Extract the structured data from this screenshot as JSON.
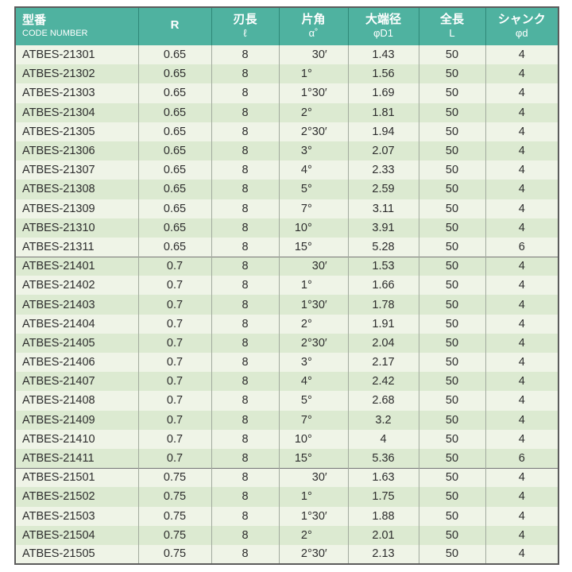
{
  "colors": {
    "header_bg": "#4fb2a0",
    "header_text": "#ffffff",
    "header_divider": "#2f8878",
    "row_light": "#eff4e7",
    "row_dark": "#dcead1",
    "outer_border": "#5c5c5c",
    "column_divider": "#a2aa9e",
    "group_divider": "#777777",
    "body_text": "#2d2d2d"
  },
  "table": {
    "columns": [
      {
        "id": "code",
        "title": "型番",
        "subtitle": "CODE NUMBER",
        "align": "left"
      },
      {
        "id": "r",
        "title": "R",
        "subtitle": ""
      },
      {
        "id": "flute_length",
        "title": "刃長",
        "subtitle": "ℓ"
      },
      {
        "id": "half_angle",
        "title": "片角",
        "subtitle": "α˚"
      },
      {
        "id": "large_end_dia",
        "title": "大端径",
        "subtitle": "φD1"
      },
      {
        "id": "overall_length",
        "title": "全長",
        "subtitle": "L"
      },
      {
        "id": "shank_dia",
        "title": "シャンク",
        "subtitle": "φd"
      }
    ],
    "rows": [
      {
        "code": "ATBES-21301",
        "r": "0.65",
        "flute_length": "8",
        "angle_deg": "",
        "angle_min": "30′",
        "large_end_dia": "1.43",
        "overall_length": "50",
        "shank_dia": "4",
        "group": 1
      },
      {
        "code": "ATBES-21302",
        "r": "0.65",
        "flute_length": "8",
        "angle_deg": "1°",
        "angle_min": "",
        "large_end_dia": "1.56",
        "overall_length": "50",
        "shank_dia": "4",
        "group": 1
      },
      {
        "code": "ATBES-21303",
        "r": "0.65",
        "flute_length": "8",
        "angle_deg": "1°",
        "angle_min": "30′",
        "large_end_dia": "1.69",
        "overall_length": "50",
        "shank_dia": "4",
        "group": 1
      },
      {
        "code": "ATBES-21304",
        "r": "0.65",
        "flute_length": "8",
        "angle_deg": "2°",
        "angle_min": "",
        "large_end_dia": "1.81",
        "overall_length": "50",
        "shank_dia": "4",
        "group": 1
      },
      {
        "code": "ATBES-21305",
        "r": "0.65",
        "flute_length": "8",
        "angle_deg": "2°",
        "angle_min": "30′",
        "large_end_dia": "1.94",
        "overall_length": "50",
        "shank_dia": "4",
        "group": 1
      },
      {
        "code": "ATBES-21306",
        "r": "0.65",
        "flute_length": "8",
        "angle_deg": "3°",
        "angle_min": "",
        "large_end_dia": "2.07",
        "overall_length": "50",
        "shank_dia": "4",
        "group": 1
      },
      {
        "code": "ATBES-21307",
        "r": "0.65",
        "flute_length": "8",
        "angle_deg": "4°",
        "angle_min": "",
        "large_end_dia": "2.33",
        "overall_length": "50",
        "shank_dia": "4",
        "group": 1
      },
      {
        "code": "ATBES-21308",
        "r": "0.65",
        "flute_length": "8",
        "angle_deg": "5°",
        "angle_min": "",
        "large_end_dia": "2.59",
        "overall_length": "50",
        "shank_dia": "4",
        "group": 1
      },
      {
        "code": "ATBES-21309",
        "r": "0.65",
        "flute_length": "8",
        "angle_deg": "7°",
        "angle_min": "",
        "large_end_dia": "3.11",
        "overall_length": "50",
        "shank_dia": "4",
        "group": 1
      },
      {
        "code": "ATBES-21310",
        "r": "0.65",
        "flute_length": "8",
        "angle_deg": "10°",
        "angle_min": "",
        "large_end_dia": "3.91",
        "overall_length": "50",
        "shank_dia": "4",
        "group": 1
      },
      {
        "code": "ATBES-21311",
        "r": "0.65",
        "flute_length": "8",
        "angle_deg": "15°",
        "angle_min": "",
        "large_end_dia": "5.28",
        "overall_length": "50",
        "shank_dia": "6",
        "group": 1
      },
      {
        "code": "ATBES-21401",
        "r": "0.7",
        "flute_length": "8",
        "angle_deg": "",
        "angle_min": "30′",
        "large_end_dia": "1.53",
        "overall_length": "50",
        "shank_dia": "4",
        "group": 2
      },
      {
        "code": "ATBES-21402",
        "r": "0.7",
        "flute_length": "8",
        "angle_deg": "1°",
        "angle_min": "",
        "large_end_dia": "1.66",
        "overall_length": "50",
        "shank_dia": "4",
        "group": 2
      },
      {
        "code": "ATBES-21403",
        "r": "0.7",
        "flute_length": "8",
        "angle_deg": "1°",
        "angle_min": "30′",
        "large_end_dia": "1.78",
        "overall_length": "50",
        "shank_dia": "4",
        "group": 2
      },
      {
        "code": "ATBES-21404",
        "r": "0.7",
        "flute_length": "8",
        "angle_deg": "2°",
        "angle_min": "",
        "large_end_dia": "1.91",
        "overall_length": "50",
        "shank_dia": "4",
        "group": 2
      },
      {
        "code": "ATBES-21405",
        "r": "0.7",
        "flute_length": "8",
        "angle_deg": "2°",
        "angle_min": "30′",
        "large_end_dia": "2.04",
        "overall_length": "50",
        "shank_dia": "4",
        "group": 2
      },
      {
        "code": "ATBES-21406",
        "r": "0.7",
        "flute_length": "8",
        "angle_deg": "3°",
        "angle_min": "",
        "large_end_dia": "2.17",
        "overall_length": "50",
        "shank_dia": "4",
        "group": 2
      },
      {
        "code": "ATBES-21407",
        "r": "0.7",
        "flute_length": "8",
        "angle_deg": "4°",
        "angle_min": "",
        "large_end_dia": "2.42",
        "overall_length": "50",
        "shank_dia": "4",
        "group": 2
      },
      {
        "code": "ATBES-21408",
        "r": "0.7",
        "flute_length": "8",
        "angle_deg": "5°",
        "angle_min": "",
        "large_end_dia": "2.68",
        "overall_length": "50",
        "shank_dia": "4",
        "group": 2
      },
      {
        "code": "ATBES-21409",
        "r": "0.7",
        "flute_length": "8",
        "angle_deg": "7°",
        "angle_min": "",
        "large_end_dia": "3.2",
        "overall_length": "50",
        "shank_dia": "4",
        "group": 2
      },
      {
        "code": "ATBES-21410",
        "r": "0.7",
        "flute_length": "8",
        "angle_deg": "10°",
        "angle_min": "",
        "large_end_dia": "4",
        "overall_length": "50",
        "shank_dia": "4",
        "group": 2
      },
      {
        "code": "ATBES-21411",
        "r": "0.7",
        "flute_length": "8",
        "angle_deg": "15°",
        "angle_min": "",
        "large_end_dia": "5.36",
        "overall_length": "50",
        "shank_dia": "6",
        "group": 2
      },
      {
        "code": "ATBES-21501",
        "r": "0.75",
        "flute_length": "8",
        "angle_deg": "",
        "angle_min": "30′",
        "large_end_dia": "1.63",
        "overall_length": "50",
        "shank_dia": "4",
        "group": 3
      },
      {
        "code": "ATBES-21502",
        "r": "0.75",
        "flute_length": "8",
        "angle_deg": "1°",
        "angle_min": "",
        "large_end_dia": "1.75",
        "overall_length": "50",
        "shank_dia": "4",
        "group": 3
      },
      {
        "code": "ATBES-21503",
        "r": "0.75",
        "flute_length": "8",
        "angle_deg": "1°",
        "angle_min": "30′",
        "large_end_dia": "1.88",
        "overall_length": "50",
        "shank_dia": "4",
        "group": 3
      },
      {
        "code": "ATBES-21504",
        "r": "0.75",
        "flute_length": "8",
        "angle_deg": "2°",
        "angle_min": "",
        "large_end_dia": "2.01",
        "overall_length": "50",
        "shank_dia": "4",
        "group": 3
      },
      {
        "code": "ATBES-21505",
        "r": "0.75",
        "flute_length": "8",
        "angle_deg": "2°",
        "angle_min": "30′",
        "large_end_dia": "2.13",
        "overall_length": "50",
        "shank_dia": "4",
        "group": 3
      }
    ]
  }
}
